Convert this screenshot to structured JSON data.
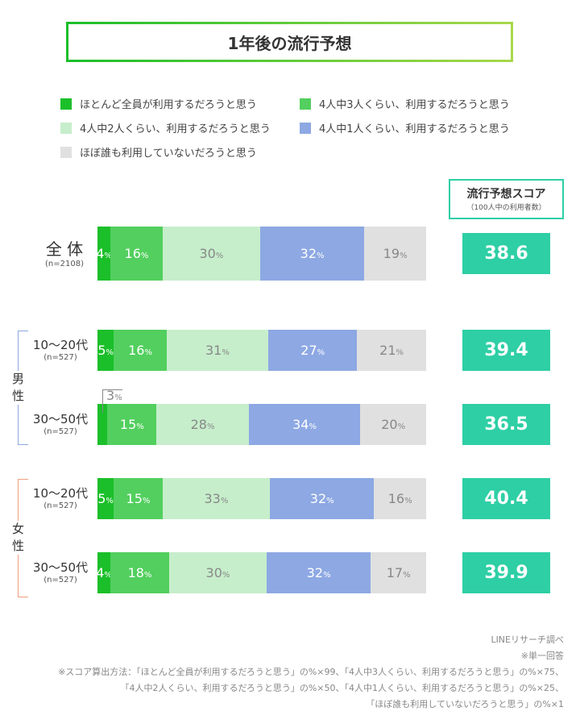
{
  "title": "1年後の流行予想",
  "legend": [
    {
      "label": "ほとんど全員が利用するだろうと思う",
      "color": "#1bbf2a"
    },
    {
      "label": "4人中3人くらい、利用するだろうと思う",
      "color": "#52cf5e"
    },
    {
      "label": "4人中2人くらい、利用するだろうと思う",
      "color": "#c6eecb"
    },
    {
      "label": "4人中1人くらい、利用するだろうと思う",
      "color": "#8da8e3"
    },
    {
      "label": "ほぼ誰も利用していないだろうと思う",
      "color": "#e0e0e0"
    }
  ],
  "score_header": {
    "title": "流行予想スコア",
    "subtitle": "（100人中の利用者数）"
  },
  "groups": {
    "male": "男性",
    "female": "女性"
  },
  "chart_data": {
    "type": "bar",
    "orientation": "horizontal-stacked-100",
    "unit": "%",
    "categories": [
      "全 体",
      "10〜20代 男性",
      "30〜50代 男性",
      "10〜20代 女性",
      "30〜50代 女性"
    ],
    "rows": [
      {
        "label": "全 体",
        "n": "(n=2108)",
        "values": [
          4,
          16,
          30,
          32,
          19
        ],
        "score": "38.6"
      },
      {
        "label": "10〜20代",
        "group": "男性",
        "n": "(n=527)",
        "values": [
          5,
          16,
          31,
          27,
          21
        ],
        "score": "39.4"
      },
      {
        "label": "30〜50代",
        "group": "男性",
        "n": "(n=527)",
        "values": [
          3,
          15,
          28,
          34,
          20
        ],
        "score": "36.5"
      },
      {
        "label": "10〜20代",
        "group": "女性",
        "n": "(n=527)",
        "values": [
          5,
          15,
          33,
          32,
          16
        ],
        "score": "40.4"
      },
      {
        "label": "30〜50代",
        "group": "女性",
        "n": "(n=527)",
        "values": [
          4,
          18,
          30,
          32,
          17
        ],
        "score": "39.9"
      }
    ],
    "series": [
      "ほとんど全員が利用するだろうと思う",
      "4人中3人くらい、利用するだろうと思う",
      "4人中2人くらい、利用するだろうと思う",
      "4人中1人くらい、利用するだろうと思う",
      "ほぼ誰も利用していないだろうと思う"
    ],
    "text_colors": [
      "#ffffff",
      "#ffffff",
      "#888888",
      "#ffffff",
      "#888888"
    ]
  },
  "footnotes": [
    "LINEリサーチ調べ",
    "※単一回答",
    "※スコア算出方法：「ほとんど全員が利用するだろうと思う」の%×99、「4人中3人くらい、利用するだろうと思う」の%×75、",
    "「4人中2人くらい、利用するだろうと思う」の%×50、「4人中1人くらい、利用するだろうと思う」の%×25、",
    "「ほぼ誰も利用していないだろうと思う」の%×1"
  ]
}
